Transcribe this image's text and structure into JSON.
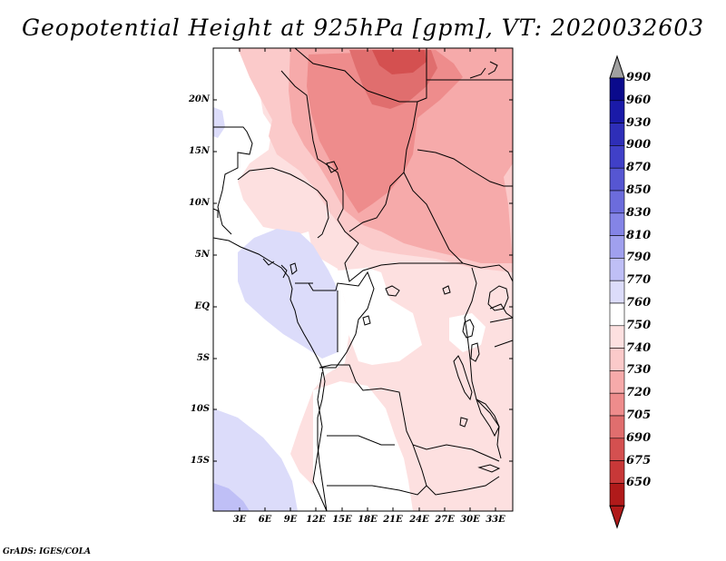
{
  "title": "Geopotential Height at 925hPa [gpm], VT: 2020032603",
  "footer": "GrADS: IGES/COLA",
  "y_axis_labels": [
    "20N",
    "15N",
    "10N",
    "5N",
    "EQ",
    "5S",
    "10S",
    "15S"
  ],
  "x_axis_labels": [
    "3E",
    "6E",
    "9E",
    "12E",
    "15E",
    "18E",
    "21E",
    "24E",
    "27E",
    "30E",
    "33E"
  ],
  "colorbar": {
    "labels": [
      "990",
      "960",
      "930",
      "900",
      "870",
      "850",
      "830",
      "810",
      "790",
      "770",
      "760",
      "750",
      "740",
      "730",
      "720",
      "705",
      "690",
      "675",
      "650"
    ],
    "colors": [
      "#0a0a8c",
      "#1a1aa8",
      "#2e2eb8",
      "#4040c8",
      "#5656d2",
      "#6c6cdc",
      "#8484e6",
      "#a0a0ee",
      "#bfbff6",
      "#dcdcfa",
      "#ffffff",
      "#fde0e0",
      "#fbcaca",
      "#f6aaaa",
      "#ee8c8c",
      "#e06e6e",
      "#d45050",
      "#c83838",
      "#b01a1a"
    ],
    "top_arrow_color": "#a0a0a0",
    "bottom_arrow_color": "#b01a1a"
  },
  "map_colors": {
    "white": "#ffffff",
    "light_blue": "#dcdcfa",
    "medium_blue": "#bfbff6",
    "very_light_pink": "#fde0e0",
    "light_pink": "#fbcaca",
    "pink": "#f6aaaa",
    "medium_red": "#ee8c8c",
    "red": "#e06e6e"
  }
}
